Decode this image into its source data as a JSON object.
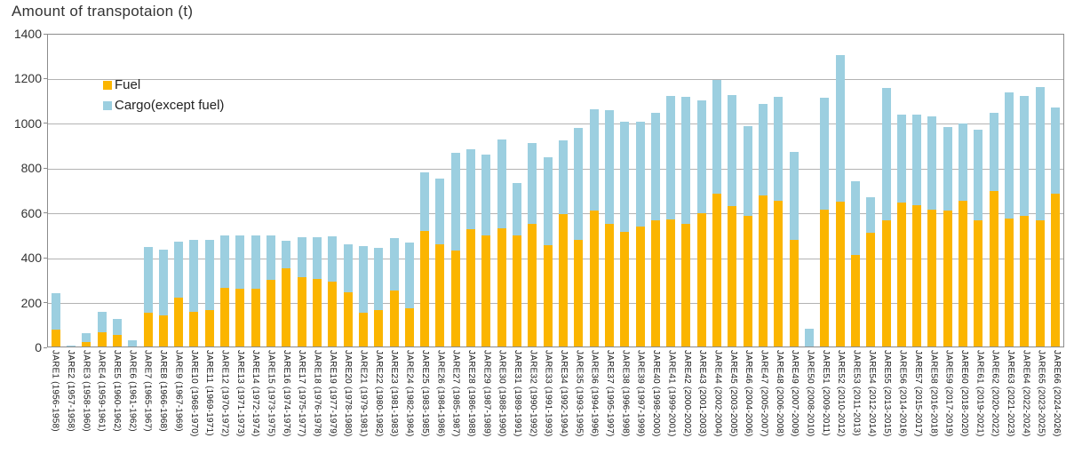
{
  "chart_data": {
    "type": "bar",
    "stacked": true,
    "title": "Amount of transpotaion (t)",
    "xlabel": "",
    "ylabel": "",
    "ylim": [
      0,
      1400
    ],
    "y_ticks": [
      0,
      200,
      400,
      600,
      800,
      1000,
      1200,
      1400
    ],
    "grid": "horizontal",
    "legend_position": "top-left-inside",
    "colors": {
      "fuel": "#FBB500",
      "cargo": "#9CCFE0",
      "gridline": "#b3b3b3",
      "plot_border": "#8c8c8c"
    },
    "categories": [
      "JARE1 (1956-1958)",
      "JARE2 (1957-1958)",
      "JARE3 (1958-1960)",
      "JARE4 (1959-1961)",
      "JARE5 (1960-1962)",
      "JARE6 (1961-1962)",
      "JARE7 (1965-1967)",
      "JARE8 (1966-1968)",
      "JARE9 (1967-1969)",
      "JARE10 (1968-1970)",
      "JARE11 (1969-1971)",
      "JARE12 (1970-1972)",
      "JARE13 (1971-1973)",
      "JARE14 (1972-1974)",
      "JARE15 (1973-1975)",
      "JARE16 (1974-1976)",
      "JARE17 (1975-1977)",
      "JARE18 (1976-1978)",
      "JARE19 (1977-1979)",
      "JARE20 (1978-1980)",
      "JARE21 (1979-1981)",
      "JARE22 (1980-1982)",
      "JARE23 (1981-1983)",
      "JARE24 (1982-1984)",
      "JARE25 (1983-1985)",
      "JARE26 (1984-1986)",
      "JARE27 (1985-1987)",
      "JARE28 (1986-1988)",
      "JARE29 (1987-1989)",
      "JARE30 (1988-1990)",
      "JARE31 (1989-1991)",
      "JARE32 (1990-1992)",
      "JARE33 (1991-1993)",
      "JARE34 (1992-1994)",
      "JARE35 (1993-1995)",
      "JARE36 (1994-1996)",
      "JARE37 (1995-1997)",
      "JARE38 (1996-1998)",
      "JARE39 (1997-1999)",
      "JARE40 (1998-2000)",
      "JARE41 (1999-2001)",
      "JARE42 (2000-2002)",
      "JARE43 (2001-2003)",
      "JARE44 (2002-2004)",
      "JARE45 (2003-2005)",
      "JARE46 (2004-2006)",
      "JARE47 (2005-2007)",
      "JARE48 (2006-2008)",
      "JARE49 (2007-2009)",
      "JARE50 (2008-2010)",
      "JARE51 (2009-2011)",
      "JARE52 (2010-2012)",
      "JARE53 (2011-2013)",
      "JARE54 (2012-2014)",
      "JARE55 (2013-2015)",
      "JARE56 (2014-2016)",
      "JARE57 (2015-2017)",
      "JARE58 (2016-2018)",
      "JARE59 (2017-2019)",
      "JARE60 (2018-2020)",
      "JARE61 (2019-2021)",
      "JARE62 (2020-2022)",
      "JARE63 (2021-2023)",
      "JARE64 (2022-2024)",
      "JARE65 (2023-2025)",
      "JARE66 (2024-2026)"
    ],
    "series": [
      {
        "name": "Fuel",
        "color": "#FBB500",
        "values": [
          75,
          0,
          20,
          62,
          50,
          0,
          150,
          140,
          220,
          155,
          165,
          265,
          258,
          260,
          300,
          350,
          310,
          305,
          290,
          242,
          150,
          162,
          250,
          170,
          520,
          460,
          430,
          528,
          497,
          530,
          498,
          550,
          455,
          595,
          480,
          612,
          550,
          515,
          540,
          565,
          570,
          550,
          600,
          685,
          630,
          585,
          680,
          655,
          480,
          0,
          615,
          650,
          410,
          510,
          565,
          645,
          635,
          615,
          610,
          655,
          565,
          700,
          575,
          585,
          565,
          685
        ]
      },
      {
        "name": "Cargo(except fuel)",
        "color": "#9CCFE0",
        "values": [
          165,
          5,
          40,
          95,
          72,
          27,
          295,
          295,
          250,
          325,
          315,
          235,
          240,
          240,
          200,
          125,
          180,
          185,
          205,
          218,
          300,
          280,
          237,
          298,
          260,
          295,
          440,
          357,
          363,
          400,
          237,
          365,
          395,
          330,
          500,
          453,
          510,
          495,
          470,
          485,
          555,
          570,
          505,
          510,
          500,
          405,
          410,
          465,
          395,
          80,
          500,
          660,
          330,
          162,
          595,
          395,
          405,
          420,
          375,
          345,
          410,
          350,
          565,
          540,
          600,
          390
        ]
      }
    ]
  }
}
